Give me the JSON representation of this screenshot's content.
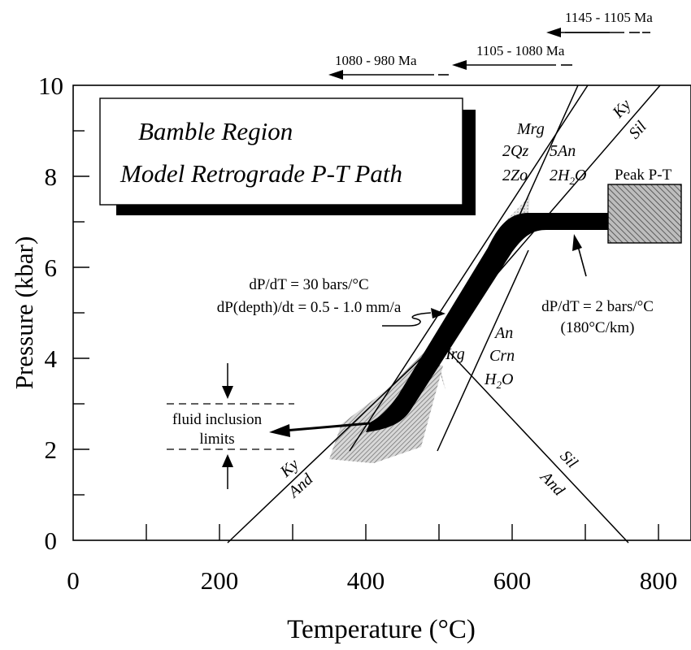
{
  "title": {
    "line1": "Bamble Region",
    "line2": "Model Retrograde P-T Path"
  },
  "axes": {
    "xlabel": "Temperature (°C)",
    "ylabel": "Pressure (kbar)",
    "x_ticks": [
      "0",
      "200",
      "400",
      "600",
      "800"
    ],
    "y_ticks": [
      "0",
      "2",
      "4",
      "6",
      "8",
      "10"
    ],
    "xlim": [
      0,
      840
    ],
    "ylim": [
      0,
      10
    ]
  },
  "age_arrows": [
    {
      "label": "1145 - 1105 Ma"
    },
    {
      "label": "1105 - 1080 Ma"
    },
    {
      "label": "1080 - 980 Ma"
    }
  ],
  "reactions": {
    "mrg_2qz_2zo": [
      "Mrg",
      "2Qz",
      "2Zo"
    ],
    "five_an_2h2o": [
      "5An",
      "2H",
      "2",
      "O"
    ],
    "ky_sil": [
      "Ky",
      "Sil"
    ],
    "mrg_an_crn_h2o": [
      "Mrg",
      "An",
      "Crn",
      "H",
      "2",
      "O"
    ],
    "ky_and": [
      "Ky",
      "And"
    ],
    "sil_and": [
      "Sil",
      "And"
    ]
  },
  "annotations": {
    "peak": "Peak P-T",
    "steep_slope": "dP/dT = 30 bars/°C",
    "exhumation_rate": "dP(depth)/dt = 0.5 - 1.0 mm/a",
    "shallow_slope": "dP/dT = 2 bars/°C",
    "gradient": "(180°C/km)",
    "fluid_line1": "fluid inclusion",
    "fluid_line2": "limits"
  },
  "colors": {
    "ink": "#000000",
    "hatch_fill": "#9a9a9a",
    "path_fill": "#000000"
  }
}
